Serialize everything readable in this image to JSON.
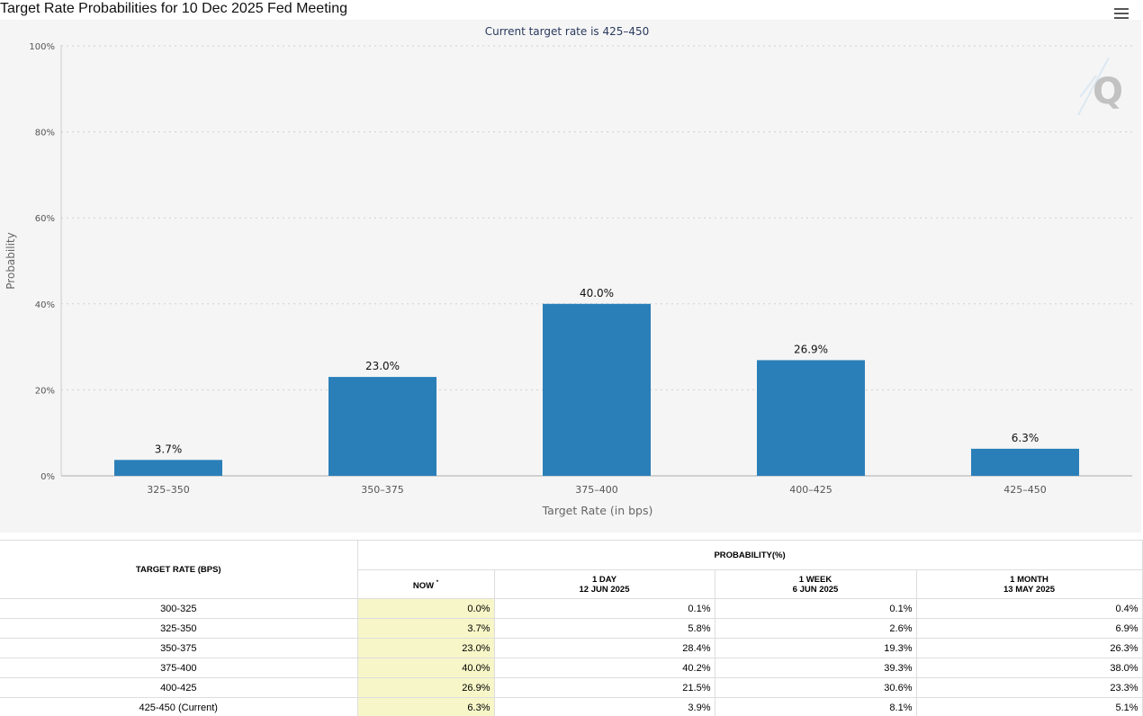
{
  "title": "Target Rate Probabilities for 10 Dec 2025 Fed Meeting",
  "menu_icon": "hamburger-menu-icon",
  "watermark_icon": "q-logo-icon",
  "colors": {
    "bar": "#2a7fb8",
    "plot_background": "#f5f5f5",
    "now_column": "#f7f6c8"
  },
  "chart_data": {
    "type": "bar",
    "title": "",
    "subtitle": "Current target rate is 425–450",
    "categories": [
      "325–350",
      "350–375",
      "375–400",
      "400–425",
      "425–450"
    ],
    "values": [
      3.7,
      23.0,
      40.0,
      26.9,
      6.3
    ],
    "data_labels": [
      "3.7%",
      "23.0%",
      "40.0%",
      "26.9%",
      "6.3%"
    ],
    "xlabel": "Target Rate (in bps)",
    "ylabel": "Probability",
    "ylim": [
      0,
      100
    ],
    "yticks": [
      0,
      20,
      40,
      60,
      80,
      100
    ],
    "ytick_labels": [
      "0%",
      "20%",
      "40%",
      "60%",
      "80%",
      "100%"
    ],
    "grid": true,
    "legend": "none"
  },
  "table": {
    "col_target_rate": "TARGET RATE (BPS)",
    "col_probability": "PROBABILITY(%)",
    "col_now": "NOW",
    "col_now_mark": "*",
    "col_1day": "1 DAY",
    "col_1day_date": "12 JUN 2025",
    "col_1week": "1 WEEK",
    "col_1week_date": "6 JUN 2025",
    "col_1month": "1 MONTH",
    "col_1month_date": "13 MAY 2025",
    "rows": [
      {
        "rate": "300-325",
        "now": "0.0%",
        "d1": "0.1%",
        "w1": "0.1%",
        "m1": "0.4%"
      },
      {
        "rate": "325-350",
        "now": "3.7%",
        "d1": "5.8%",
        "w1": "2.6%",
        "m1": "6.9%"
      },
      {
        "rate": "350-375",
        "now": "23.0%",
        "d1": "28.4%",
        "w1": "19.3%",
        "m1": "26.3%"
      },
      {
        "rate": "375-400",
        "now": "40.0%",
        "d1": "40.2%",
        "w1": "39.3%",
        "m1": "38.0%"
      },
      {
        "rate": "400-425",
        "now": "26.9%",
        "d1": "21.5%",
        "w1": "30.6%",
        "m1": "23.3%"
      },
      {
        "rate": "425-450 (Current)",
        "now": "6.3%",
        "d1": "3.9%",
        "w1": "8.1%",
        "m1": "5.1%"
      }
    ]
  }
}
